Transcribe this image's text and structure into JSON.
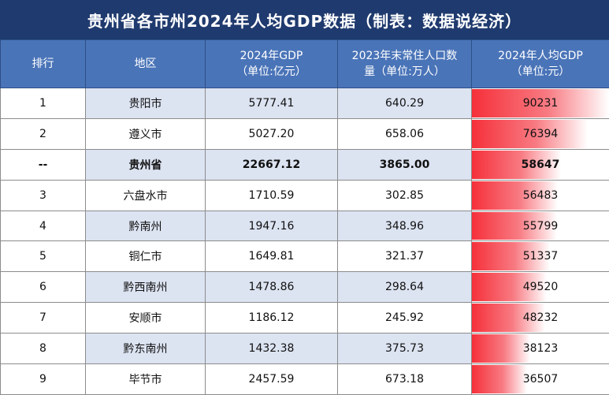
{
  "title": "贵州省各市州2024年人均GDP数据（制表：数据说经济）",
  "headers": [
    "排行",
    "地区",
    "2024年GDP\n（单位:亿元）",
    "2023年末常住人口数\n量（单位:万人）",
    "2024年人均GDP\n（单位:元）"
  ],
  "chart_data": {
    "type": "table",
    "columns": [
      "排行",
      "地区",
      "2024年GDP（单位:亿元）",
      "2023年末常住人口数量（单位:万人）",
      "2024年人均GDP（单位:元）"
    ],
    "rows": [
      {
        "rank": "1",
        "region": "贵阳市",
        "gdp": "5777.41",
        "pop": "640.29",
        "per": "90231",
        "per_value": 90231
      },
      {
        "rank": "2",
        "region": "遵义市",
        "gdp": "5027.20",
        "pop": "658.06",
        "per": "76394",
        "per_value": 76394
      },
      {
        "rank": "--",
        "region": "贵州省",
        "gdp": "22667.12",
        "pop": "3865.00",
        "per": "58647",
        "per_value": 58647
      },
      {
        "rank": "3",
        "region": "六盘水市",
        "gdp": "1710.59",
        "pop": "302.85",
        "per": "56483",
        "per_value": 56483
      },
      {
        "rank": "4",
        "region": "黔南州",
        "gdp": "1947.16",
        "pop": "348.96",
        "per": "55799",
        "per_value": 55799
      },
      {
        "rank": "5",
        "region": "铜仁市",
        "gdp": "1649.81",
        "pop": "321.37",
        "per": "51337",
        "per_value": 51337
      },
      {
        "rank": "6",
        "region": "黔西南州",
        "gdp": "1478.86",
        "pop": "298.64",
        "per": "49520",
        "per_value": 49520
      },
      {
        "rank": "7",
        "region": "安顺市",
        "gdp": "1186.12",
        "pop": "245.92",
        "per": "48232",
        "per_value": 48232
      },
      {
        "rank": "8",
        "region": "黔东南州",
        "gdp": "1432.38",
        "pop": "375.73",
        "per": "38123",
        "per_value": 38123
      },
      {
        "rank": "9",
        "region": "毕节市",
        "gdp": "2457.59",
        "pop": "673.18",
        "per": "36507",
        "per_value": 36507
      }
    ],
    "highlight_row": "贵州省",
    "bar_color": "#f5303a"
  }
}
